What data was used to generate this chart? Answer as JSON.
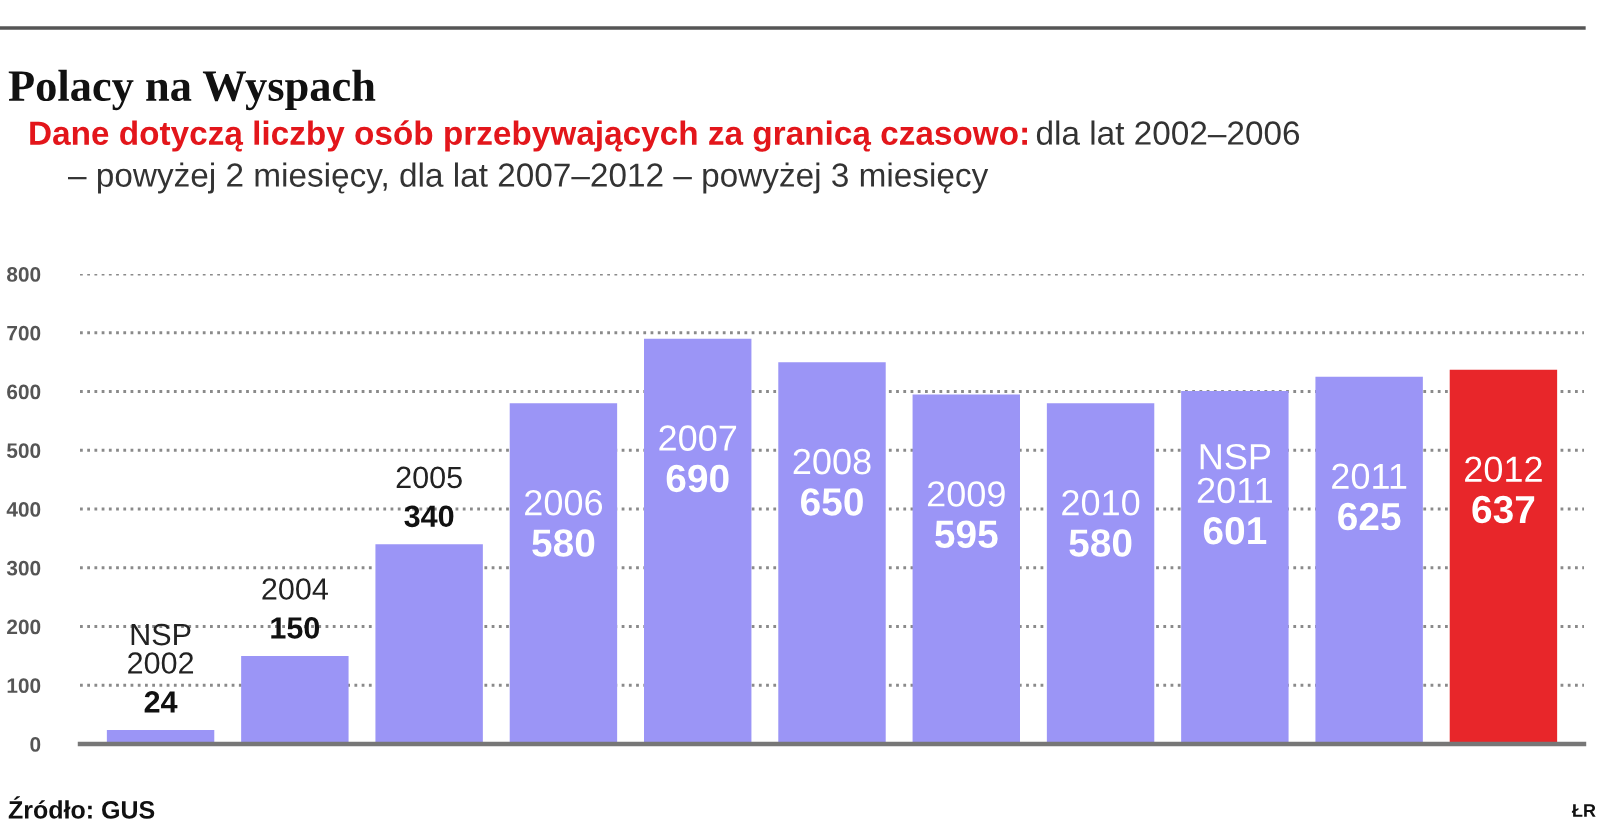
{
  "chart_data": {
    "type": "bar",
    "title": "Polacy na Wyspach",
    "subtitle": "Dane dotyczą liczby osób przebywających za granicą czasowo:",
    "annotations": [
      "dla lat 2002–2006 – powyżej 2 miesięcy, dla lat 2007–2012 – powyżej 3 miesięcy",
      "Źródło: GUS",
      "ŁR"
    ],
    "categories": [
      "NSP 2002",
      "2004",
      "2005",
      "2006",
      "2007",
      "2008",
      "2009",
      "2010",
      "NSP 2011",
      "2011",
      "2012"
    ],
    "values": [
      24,
      150,
      340,
      580,
      690,
      650,
      595,
      580,
      601,
      625,
      637
    ],
    "colors": [
      "#9b95f6",
      "#9b95f6",
      "#9b95f6",
      "#9b95f6",
      "#9b95f6",
      "#9b95f6",
      "#9b95f6",
      "#9b95f6",
      "#9b95f6",
      "#9b95f6",
      "#e8262a"
    ],
    "ylim": [
      0,
      800
    ],
    "yticks": [
      0,
      100,
      200,
      300,
      400,
      500,
      600,
      700,
      800
    ],
    "grid": "y",
    "tick_labels": "y",
    "data_labels": true
  }
}
